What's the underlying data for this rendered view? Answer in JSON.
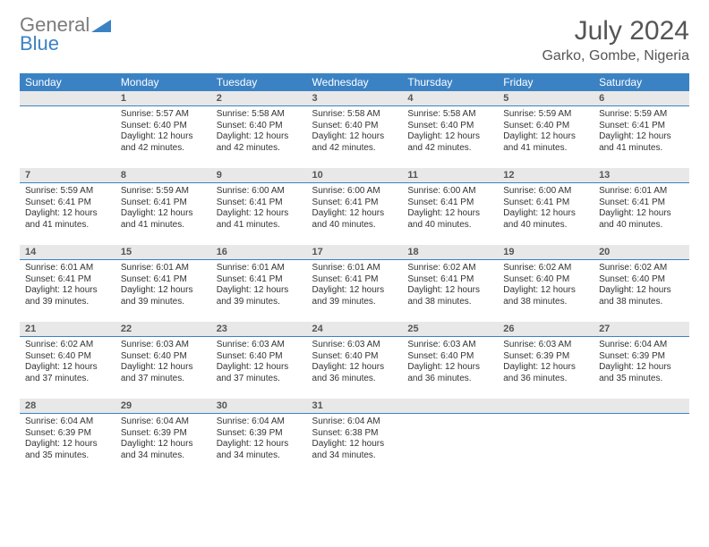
{
  "logo": {
    "text1": "General",
    "text2": "Blue"
  },
  "title": "July 2024",
  "location": "Garko, Gombe, Nigeria",
  "colors": {
    "header_bg": "#3b82c4",
    "header_text": "#ffffff",
    "daynum_bg": "#e8e8e8",
    "daynum_border": "#3b82c4",
    "body_text": "#333333",
    "title_text": "#555555",
    "logo_gray": "#7b7b7b",
    "logo_blue": "#3b82c4",
    "page_bg": "#ffffff"
  },
  "fonts": {
    "title_pt": 30,
    "location_pt": 16,
    "weekday_pt": 12,
    "daynum_pt": 11,
    "cell_pt": 10
  },
  "columns": [
    "Sunday",
    "Monday",
    "Tuesday",
    "Wednesday",
    "Thursday",
    "Friday",
    "Saturday"
  ],
  "weeks": [
    [
      {
        "blank": true
      },
      {
        "n": 1,
        "sr": "5:57 AM",
        "ss": "6:40 PM",
        "dl": "12 hours and 42 minutes."
      },
      {
        "n": 2,
        "sr": "5:58 AM",
        "ss": "6:40 PM",
        "dl": "12 hours and 42 minutes."
      },
      {
        "n": 3,
        "sr": "5:58 AM",
        "ss": "6:40 PM",
        "dl": "12 hours and 42 minutes."
      },
      {
        "n": 4,
        "sr": "5:58 AM",
        "ss": "6:40 PM",
        "dl": "12 hours and 42 minutes."
      },
      {
        "n": 5,
        "sr": "5:59 AM",
        "ss": "6:40 PM",
        "dl": "12 hours and 41 minutes."
      },
      {
        "n": 6,
        "sr": "5:59 AM",
        "ss": "6:41 PM",
        "dl": "12 hours and 41 minutes."
      }
    ],
    [
      {
        "n": 7,
        "sr": "5:59 AM",
        "ss": "6:41 PM",
        "dl": "12 hours and 41 minutes."
      },
      {
        "n": 8,
        "sr": "5:59 AM",
        "ss": "6:41 PM",
        "dl": "12 hours and 41 minutes."
      },
      {
        "n": 9,
        "sr": "6:00 AM",
        "ss": "6:41 PM",
        "dl": "12 hours and 41 minutes."
      },
      {
        "n": 10,
        "sr": "6:00 AM",
        "ss": "6:41 PM",
        "dl": "12 hours and 40 minutes."
      },
      {
        "n": 11,
        "sr": "6:00 AM",
        "ss": "6:41 PM",
        "dl": "12 hours and 40 minutes."
      },
      {
        "n": 12,
        "sr": "6:00 AM",
        "ss": "6:41 PM",
        "dl": "12 hours and 40 minutes."
      },
      {
        "n": 13,
        "sr": "6:01 AM",
        "ss": "6:41 PM",
        "dl": "12 hours and 40 minutes."
      }
    ],
    [
      {
        "n": 14,
        "sr": "6:01 AM",
        "ss": "6:41 PM",
        "dl": "12 hours and 39 minutes."
      },
      {
        "n": 15,
        "sr": "6:01 AM",
        "ss": "6:41 PM",
        "dl": "12 hours and 39 minutes."
      },
      {
        "n": 16,
        "sr": "6:01 AM",
        "ss": "6:41 PM",
        "dl": "12 hours and 39 minutes."
      },
      {
        "n": 17,
        "sr": "6:01 AM",
        "ss": "6:41 PM",
        "dl": "12 hours and 39 minutes."
      },
      {
        "n": 18,
        "sr": "6:02 AM",
        "ss": "6:41 PM",
        "dl": "12 hours and 38 minutes."
      },
      {
        "n": 19,
        "sr": "6:02 AM",
        "ss": "6:40 PM",
        "dl": "12 hours and 38 minutes."
      },
      {
        "n": 20,
        "sr": "6:02 AM",
        "ss": "6:40 PM",
        "dl": "12 hours and 38 minutes."
      }
    ],
    [
      {
        "n": 21,
        "sr": "6:02 AM",
        "ss": "6:40 PM",
        "dl": "12 hours and 37 minutes."
      },
      {
        "n": 22,
        "sr": "6:03 AM",
        "ss": "6:40 PM",
        "dl": "12 hours and 37 minutes."
      },
      {
        "n": 23,
        "sr": "6:03 AM",
        "ss": "6:40 PM",
        "dl": "12 hours and 37 minutes."
      },
      {
        "n": 24,
        "sr": "6:03 AM",
        "ss": "6:40 PM",
        "dl": "12 hours and 36 minutes."
      },
      {
        "n": 25,
        "sr": "6:03 AM",
        "ss": "6:40 PM",
        "dl": "12 hours and 36 minutes."
      },
      {
        "n": 26,
        "sr": "6:03 AM",
        "ss": "6:39 PM",
        "dl": "12 hours and 36 minutes."
      },
      {
        "n": 27,
        "sr": "6:04 AM",
        "ss": "6:39 PM",
        "dl": "12 hours and 35 minutes."
      }
    ],
    [
      {
        "n": 28,
        "sr": "6:04 AM",
        "ss": "6:39 PM",
        "dl": "12 hours and 35 minutes."
      },
      {
        "n": 29,
        "sr": "6:04 AM",
        "ss": "6:39 PM",
        "dl": "12 hours and 34 minutes."
      },
      {
        "n": 30,
        "sr": "6:04 AM",
        "ss": "6:39 PM",
        "dl": "12 hours and 34 minutes."
      },
      {
        "n": 31,
        "sr": "6:04 AM",
        "ss": "6:38 PM",
        "dl": "12 hours and 34 minutes."
      },
      {
        "blank": true
      },
      {
        "blank": true
      },
      {
        "blank": true
      }
    ]
  ],
  "labels": {
    "sunrise": "Sunrise:",
    "sunset": "Sunset:",
    "daylight": "Daylight:"
  }
}
